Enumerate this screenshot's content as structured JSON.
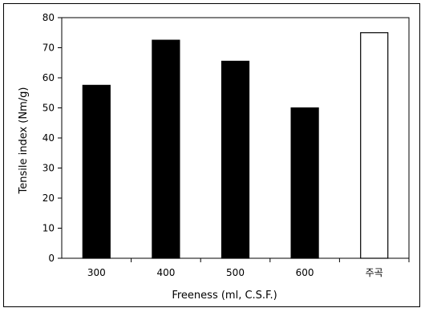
{
  "chart_data": {
    "type": "bar",
    "categories": [
      "300",
      "400",
      "500",
      "600",
      "주곡"
    ],
    "values": [
      57.5,
      72.5,
      65.5,
      50,
      75
    ],
    "bar_fills": [
      "#000000",
      "#000000",
      "#000000",
      "#000000",
      "#ffffff"
    ],
    "title": "",
    "xlabel": "Freeness (ml, C.S.F.)",
    "ylabel": "Tensile index (Nm/g)",
    "ylim": [
      0,
      80
    ],
    "yticks": [
      0,
      10,
      20,
      30,
      40,
      50,
      60,
      70,
      80
    ],
    "grid": false,
    "legend": "none"
  }
}
